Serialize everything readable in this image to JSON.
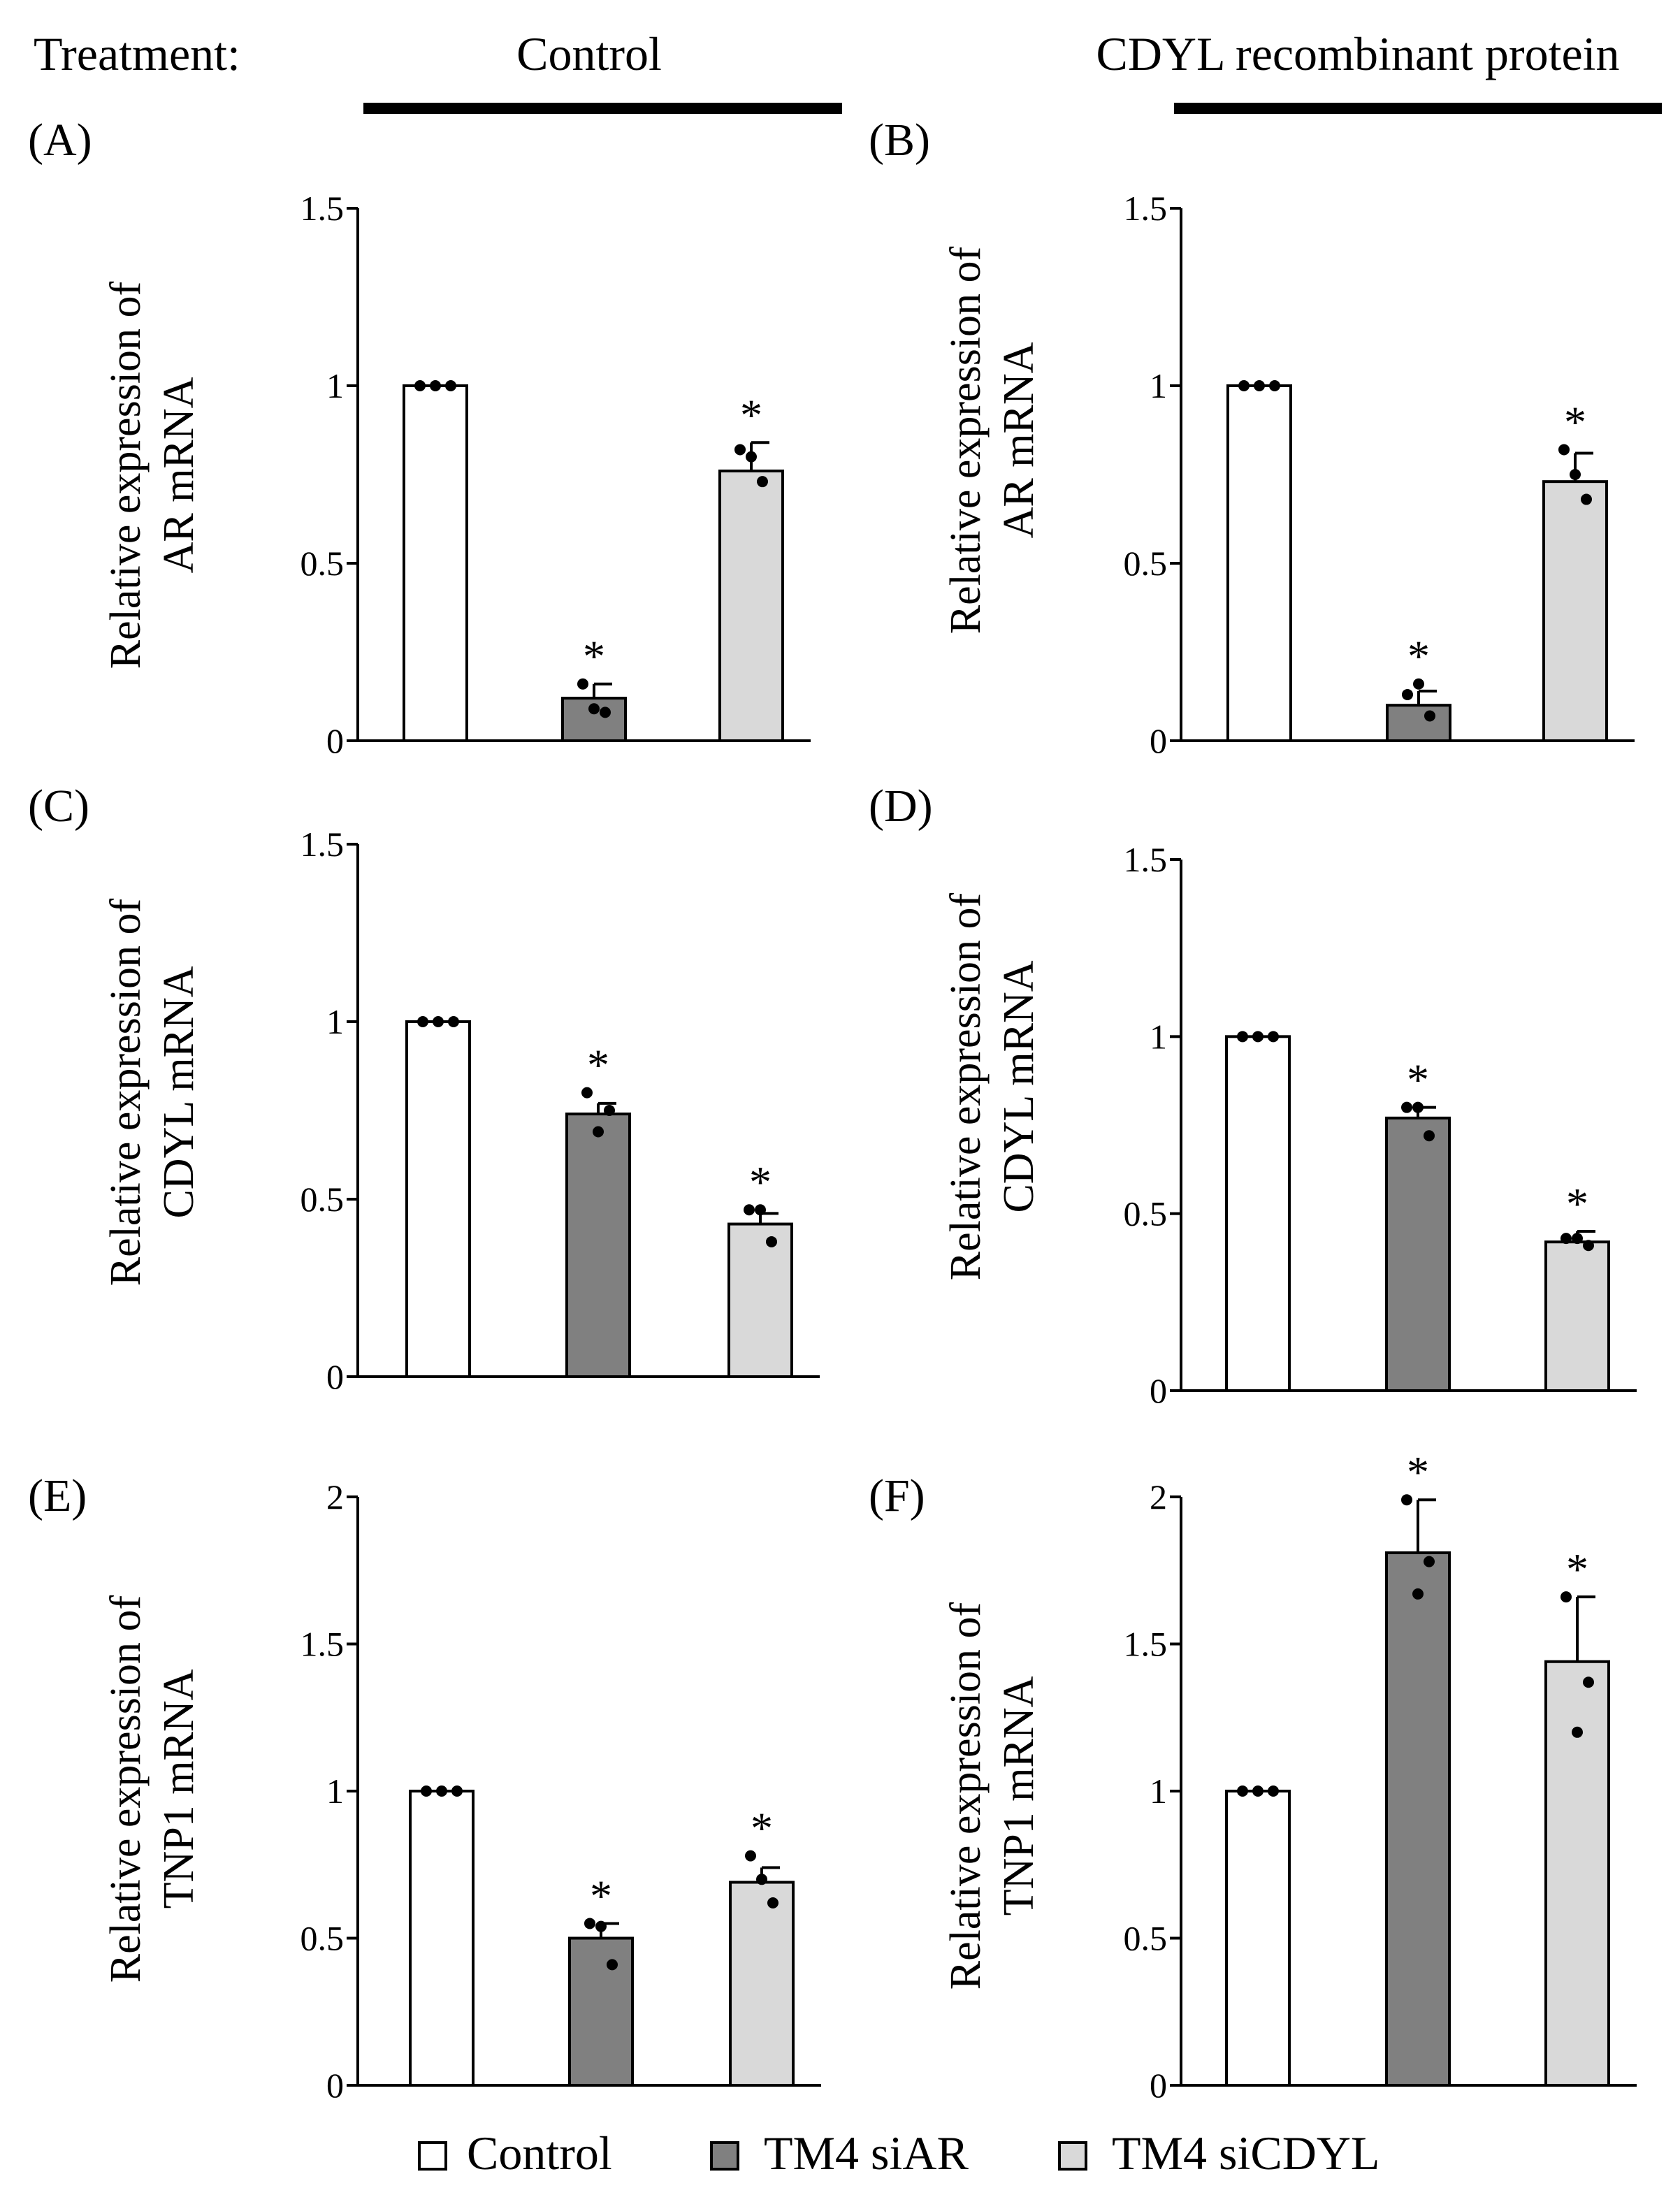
{
  "header": {
    "treatment_label": "Treatment:",
    "control_label": "Control",
    "cdyl_label": "CDYL  recombinant protein"
  },
  "legend": {
    "items": [
      {
        "label": "Control",
        "color": "#ffffff"
      },
      {
        "label": "TM4 siAR",
        "color": "#808080"
      },
      {
        "label": "TM4 siCDYL",
        "color": "#d9d9d9"
      }
    ]
  },
  "chart_data": [
    {
      "panel": "(A)",
      "type": "bar",
      "treatment": "Control",
      "ylabel_line1": "Relative expression of",
      "ylabel_line2": "AR mRNA",
      "ylim": [
        0,
        1.5
      ],
      "ticks": [
        0,
        0.5,
        1,
        1.5
      ],
      "tick_labels": [
        "0",
        "0.5",
        "1",
        "1.5"
      ],
      "categories": [
        "Control",
        "TM4 siAR",
        "TM4 siCDYL"
      ],
      "values": [
        1.0,
        0.12,
        0.76
      ],
      "errors": [
        0,
        0.04,
        0.08
      ],
      "points": [
        [
          1.0,
          1.0,
          1.0
        ],
        [
          0.16,
          0.08,
          0.09
        ],
        [
          0.82,
          0.73,
          0.8
        ]
      ],
      "significant": [
        false,
        true,
        true
      ],
      "star": "*"
    },
    {
      "panel": "(B)",
      "type": "bar",
      "treatment": "CDYL recombinant protein",
      "ylabel_line1": "Relative expression of",
      "ylabel_line2": "AR mRNA",
      "ylim": [
        0,
        1.5
      ],
      "ticks": [
        0,
        0.5,
        1,
        1.5
      ],
      "tick_labels": [
        "0",
        "0.5",
        "1",
        "1.5"
      ],
      "categories": [
        "Control",
        "TM4 siAR",
        "TM4 siCDYL"
      ],
      "values": [
        1.0,
        0.1,
        0.73
      ],
      "errors": [
        0,
        0.04,
        0.08
      ],
      "points": [
        [
          1.0,
          1.0,
          1.0
        ],
        [
          0.13,
          0.07,
          0.16
        ],
        [
          0.82,
          0.68,
          0.75
        ]
      ],
      "significant": [
        false,
        true,
        true
      ],
      "star": "*"
    },
    {
      "panel": "(C)",
      "type": "bar",
      "treatment": "Control",
      "ylabel_line1": "Relative expression of",
      "ylabel_line2": "CDYL mRNA",
      "ylim": [
        0,
        1.5
      ],
      "ticks": [
        0,
        0.5,
        1,
        1.5
      ],
      "tick_labels": [
        "0",
        "0.5",
        "1",
        "1.5"
      ],
      "categories": [
        "Control",
        "TM4 siAR",
        "TM4 siCDYL"
      ],
      "values": [
        1.0,
        0.74,
        0.43
      ],
      "errors": [
        0,
        0.03,
        0.03
      ],
      "points": [
        [
          1.0,
          1.0,
          1.0
        ],
        [
          0.8,
          0.75,
          0.69
        ],
        [
          0.47,
          0.38,
          0.47
        ]
      ],
      "significant": [
        false,
        true,
        true
      ],
      "star": "*"
    },
    {
      "panel": "(D)",
      "type": "bar",
      "treatment": "CDYL recombinant protein",
      "ylabel_line1": "Relative expression of",
      "ylabel_line2": "CDYL mRNA",
      "ylim": [
        0,
        1.5
      ],
      "ticks": [
        0,
        0.5,
        1,
        1.5
      ],
      "tick_labels": [
        "0",
        "0.5",
        "1",
        "1.5"
      ],
      "categories": [
        "Control",
        "TM4 siAR",
        "TM4 siCDYL"
      ],
      "values": [
        1.0,
        0.77,
        0.42
      ],
      "errors": [
        0,
        0.03,
        0.03
      ],
      "points": [
        [
          1.0,
          1.0,
          1.0
        ],
        [
          0.8,
          0.72,
          0.8
        ],
        [
          0.43,
          0.41,
          0.43
        ]
      ],
      "significant": [
        false,
        true,
        true
      ],
      "star": "*"
    },
    {
      "panel": "(E)",
      "type": "bar",
      "treatment": "Control",
      "ylabel_line1": "Relative expression of",
      "ylabel_line2": "TNP1 mRNA",
      "ylim": [
        0,
        2
      ],
      "ticks": [
        0,
        0.5,
        1,
        1.5,
        2
      ],
      "tick_labels": [
        "0",
        "0.5",
        "1",
        "1.5",
        "2"
      ],
      "categories": [
        "Control",
        "TM4 siAR",
        "TM4 siCDYL"
      ],
      "values": [
        1.0,
        0.5,
        0.69
      ],
      "errors": [
        0,
        0.05,
        0.05
      ],
      "points": [
        [
          1.0,
          1.0,
          1.0
        ],
        [
          0.55,
          0.41,
          0.54
        ],
        [
          0.78,
          0.62,
          0.7
        ]
      ],
      "significant": [
        false,
        true,
        true
      ],
      "star": "*"
    },
    {
      "panel": "(F)",
      "type": "bar",
      "treatment": "CDYL recombinant protein",
      "ylabel_line1": "Relative expression of",
      "ylabel_line2": "TNP1 mRNA",
      "ylim": [
        0,
        2
      ],
      "ticks": [
        0,
        0.5,
        1,
        1.5,
        2
      ],
      "tick_labels": [
        "0",
        "0.5",
        "1",
        "1.5",
        "2"
      ],
      "categories": [
        "Control",
        "TM4 siAR",
        "TM4 siCDYL"
      ],
      "values": [
        1.0,
        1.81,
        1.44
      ],
      "errors": [
        0,
        0.18,
        0.22
      ],
      "points": [
        [
          1.0,
          1.0,
          1.0
        ],
        [
          1.99,
          1.78,
          1.67
        ],
        [
          1.66,
          1.37,
          1.2
        ]
      ],
      "significant": [
        false,
        true,
        true
      ],
      "star": "*"
    }
  ]
}
